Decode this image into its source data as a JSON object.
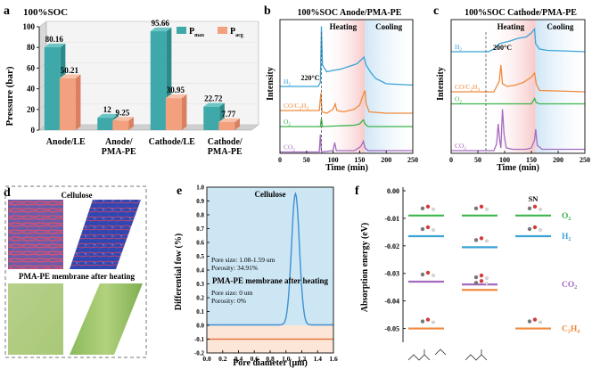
{
  "colors": {
    "teal": "#3fa9a9",
    "salmon": "#f3a07e",
    "blue": "#3aa3d6",
    "orange": "#f08a3c",
    "green": "#3cb54a",
    "purple": "#a46bc0",
    "heat": "#f7c9c9",
    "cool": "#cfe6f6",
    "cell_top": "#cde6f4",
    "cell_bot": "#fbe6d8"
  },
  "panel_a": {
    "label": "a",
    "chart_data": {
      "type": "bar",
      "title": "100%SOC",
      "ylabel": "Pressure (bar)",
      "ylim": [
        0,
        100
      ],
      "yticks": [
        0,
        20,
        40,
        60,
        80,
        100
      ],
      "categories": [
        "Anode/LE",
        "Anode/\nPMA-PE",
        "Cathode/LE",
        "Cathode/\nPMA-PE"
      ],
      "category_lines": [
        [
          "Anode/LE"
        ],
        [
          "Anode/",
          "PMA-PE"
        ],
        [
          "Cathode/LE"
        ],
        [
          "Cathode/",
          "PMA-PE"
        ]
      ],
      "series": [
        {
          "name": "P",
          "sub": "max",
          "values": [
            80.16,
            12,
            95.66,
            22.72
          ],
          "labels": [
            "80.16",
            "12",
            "95.66",
            "22.72"
          ]
        },
        {
          "name": "P",
          "sub": "acg",
          "values": [
            50.21,
            9.25,
            30.95,
            7.77
          ],
          "labels": [
            "50.21",
            "9.25",
            "30.95",
            "7.77"
          ]
        }
      ]
    }
  },
  "panel_b": {
    "label": "b",
    "chart_data": {
      "type": "line",
      "title": "100%SOC Anode/PMA-PE",
      "xlabel": "Time (min)",
      "ylabel": "Intensity",
      "xlim": [
        0,
        250
      ],
      "xticks": [
        0,
        50,
        100,
        150,
        200,
        250
      ],
      "regions": [
        {
          "name": "Heating",
          "x0": 78,
          "x1": 160
        },
        {
          "name": "Cooling",
          "x0": 160,
          "x1": 250
        }
      ],
      "marker": {
        "x": 78,
        "label": "220°C"
      },
      "series": [
        {
          "name": "H2",
          "label_main": "H",
          "label_sub": "2",
          "points": [
            [
              0,
              50
            ],
            [
              72,
              50
            ],
            [
              76,
              53
            ],
            [
              78,
              95
            ],
            [
              80,
              66
            ],
            [
              88,
              61
            ],
            [
              100,
              62
            ],
            [
              115,
              63
            ],
            [
              130,
              65
            ],
            [
              145,
              67
            ],
            [
              153,
              70
            ],
            [
              158,
              72
            ],
            [
              162,
              66
            ],
            [
              170,
              61
            ],
            [
              180,
              56
            ],
            [
              200,
              52
            ],
            [
              250,
              51
            ]
          ]
        },
        {
          "name": "CO/C2H4",
          "label_main": "CO/C",
          "label_sub": "2",
          "label_post": "H",
          "label_sub2": "4",
          "points": [
            [
              0,
              32
            ],
            [
              74,
              32
            ],
            [
              77,
              45
            ],
            [
              79,
              31
            ],
            [
              88,
              30
            ],
            [
              100,
              33
            ],
            [
              104,
              37
            ],
            [
              107,
              32
            ],
            [
              120,
              31
            ],
            [
              140,
              33
            ],
            [
              150,
              36
            ],
            [
              156,
              43
            ],
            [
              160,
              47
            ],
            [
              162,
              37
            ],
            [
              168,
              31
            ],
            [
              200,
              30
            ],
            [
              250,
              30
            ]
          ]
        },
        {
          "name": "O2",
          "label_main": "O",
          "label_sub": "2",
          "points": [
            [
              0,
              20
            ],
            [
              76,
              20
            ],
            [
              78,
              26
            ],
            [
              80,
              20
            ],
            [
              140,
              21
            ],
            [
              150,
              22
            ],
            [
              157,
              25
            ],
            [
              160,
              22
            ],
            [
              166,
              20
            ],
            [
              250,
              20
            ]
          ]
        },
        {
          "name": "CO2",
          "label_main": "CO",
          "label_sub": "2",
          "points": [
            [
              0,
              1
            ],
            [
              74,
              1
            ],
            [
              76,
              14
            ],
            [
              78,
              1
            ],
            [
              100,
              2
            ],
            [
              103,
              8
            ],
            [
              106,
              2
            ],
            [
              140,
              2
            ],
            [
              152,
              5
            ],
            [
              157,
              9
            ],
            [
              160,
              4
            ],
            [
              166,
              2
            ],
            [
              250,
              2
            ]
          ]
        }
      ]
    }
  },
  "panel_c": {
    "label": "c",
    "chart_data": {
      "type": "line",
      "title": "100%SOC Cathode/PMA-PE",
      "xlabel": "Time (min)",
      "ylabel": "Intensity",
      "xlim": [
        0,
        250
      ],
      "xticks": [
        0,
        50,
        100,
        150,
        200,
        250
      ],
      "regions": [
        {
          "name": "Heating",
          "x0": 65,
          "x1": 158
        },
        {
          "name": "Cooling",
          "x0": 158,
          "x1": 250
        }
      ],
      "marker": {
        "x": 65,
        "label": "200°C"
      },
      "series": [
        {
          "name": "H2",
          "label_main": "H",
          "label_sub": "2",
          "points": [
            [
              0,
              76
            ],
            [
              70,
              76
            ],
            [
              80,
              78
            ],
            [
              90,
              82
            ],
            [
              100,
              83
            ],
            [
              110,
              84
            ],
            [
              125,
              86
            ],
            [
              140,
              87
            ],
            [
              150,
              90
            ],
            [
              156,
              93
            ],
            [
              158,
              82
            ],
            [
              165,
              78
            ],
            [
              180,
              77
            ],
            [
              250,
              76
            ]
          ]
        },
        {
          "name": "CO/C2H4",
          "label_main": "CO/C",
          "label_sub": "2",
          "label_post": "H",
          "label_sub2": "4",
          "points": [
            [
              0,
              46
            ],
            [
              80,
              46
            ],
            [
              85,
              50
            ],
            [
              90,
              54
            ],
            [
              93,
              66
            ],
            [
              96,
              52
            ],
            [
              105,
              50
            ],
            [
              120,
              51
            ],
            [
              135,
              53
            ],
            [
              150,
              57
            ],
            [
              156,
              60
            ],
            [
              159,
              52
            ],
            [
              165,
              47
            ],
            [
              250,
              46
            ]
          ]
        },
        {
          "name": "O2",
          "label_main": "O",
          "label_sub": "2",
          "points": [
            [
              0,
              37
            ],
            [
              150,
              37
            ],
            [
              156,
              41
            ],
            [
              159,
              38
            ],
            [
              165,
              37
            ],
            [
              250,
              37
            ]
          ]
        },
        {
          "name": "CO2",
          "label_main": "CO",
          "label_sub": "2",
          "points": [
            [
              0,
              2
            ],
            [
              80,
              2
            ],
            [
              85,
              7
            ],
            [
              88,
              22
            ],
            [
              91,
              9
            ],
            [
              93,
              4
            ],
            [
              96,
              33
            ],
            [
              99,
              14
            ],
            [
              103,
              4
            ],
            [
              115,
              3
            ],
            [
              140,
              3
            ],
            [
              150,
              4
            ],
            [
              156,
              10
            ],
            [
              158,
              18
            ],
            [
              161,
              6
            ],
            [
              170,
              3
            ],
            [
              250,
              3
            ]
          ]
        }
      ]
    }
  },
  "panel_d": {
    "label": "d",
    "top_title": "Cellulose",
    "bottom_title": "PMA-PE membrane after heating"
  },
  "panel_e": {
    "label": "e",
    "chart_data": {
      "type": "line",
      "xlabel": "Pore diameter (μm)",
      "ylabel": "Differential fow (%)",
      "xlim": [
        0,
        1.6
      ],
      "ylim": [
        -0.2,
        1.0
      ],
      "xticks": [
        "0.0",
        "0.2",
        "0.4",
        "0.6",
        "0.8",
        "1.0",
        "1.2",
        "1.4",
        "1.6"
      ],
      "yticks": [
        "-0.2",
        "-0.1",
        "0.0",
        "0.1",
        "0.2",
        "0.3",
        "0.4",
        "0.5",
        "0.6",
        "0.7",
        "0.8",
        "0.9",
        "1.0"
      ],
      "top": {
        "title": "Cellulose",
        "pore_size": "Pore size: 1.08-1.59 um",
        "porosity": "Porosity: 34.91%",
        "peak": {
          "x": 1.12,
          "y": 0.95
        }
      },
      "bottom": {
        "title": "PMA-PE membrane after heating",
        "pore_size": "Pore size: 0 um",
        "porosity": "Porosity: 0%",
        "value": 0.0
      }
    }
  },
  "panel_f": {
    "label": "f",
    "chart_data": {
      "type": "scatter",
      "ylabel": "Absorption energy (eV)",
      "ylim": [
        -0.055,
        0.0
      ],
      "yticks": [
        "0.00",
        "-0.01",
        "-0.02",
        "-0.03",
        "-0.04",
        "-0.05"
      ],
      "columns": [
        "molecule 1",
        "molecule 2",
        "SN"
      ],
      "sn_label": "SN",
      "gases": [
        {
          "name": "O2",
          "main": "O",
          "sub": "2",
          "color": "green",
          "values": [
            -0.009,
            -0.009,
            -0.009
          ]
        },
        {
          "name": "H2",
          "main": "H",
          "sub": "2",
          "color": "blue",
          "values": [
            -0.0165,
            -0.0205,
            -0.0165
          ]
        },
        {
          "name": "CO2",
          "main": "CO",
          "sub": "2",
          "color": "purple",
          "values": [
            -0.033,
            -0.034,
            null
          ]
        },
        {
          "name": "C3H4",
          "main": "C",
          "sub": "3",
          "post": "H",
          "sub2": "4",
          "color": "orange",
          "values": [
            -0.05,
            -0.036,
            -0.05
          ]
        }
      ]
    }
  }
}
